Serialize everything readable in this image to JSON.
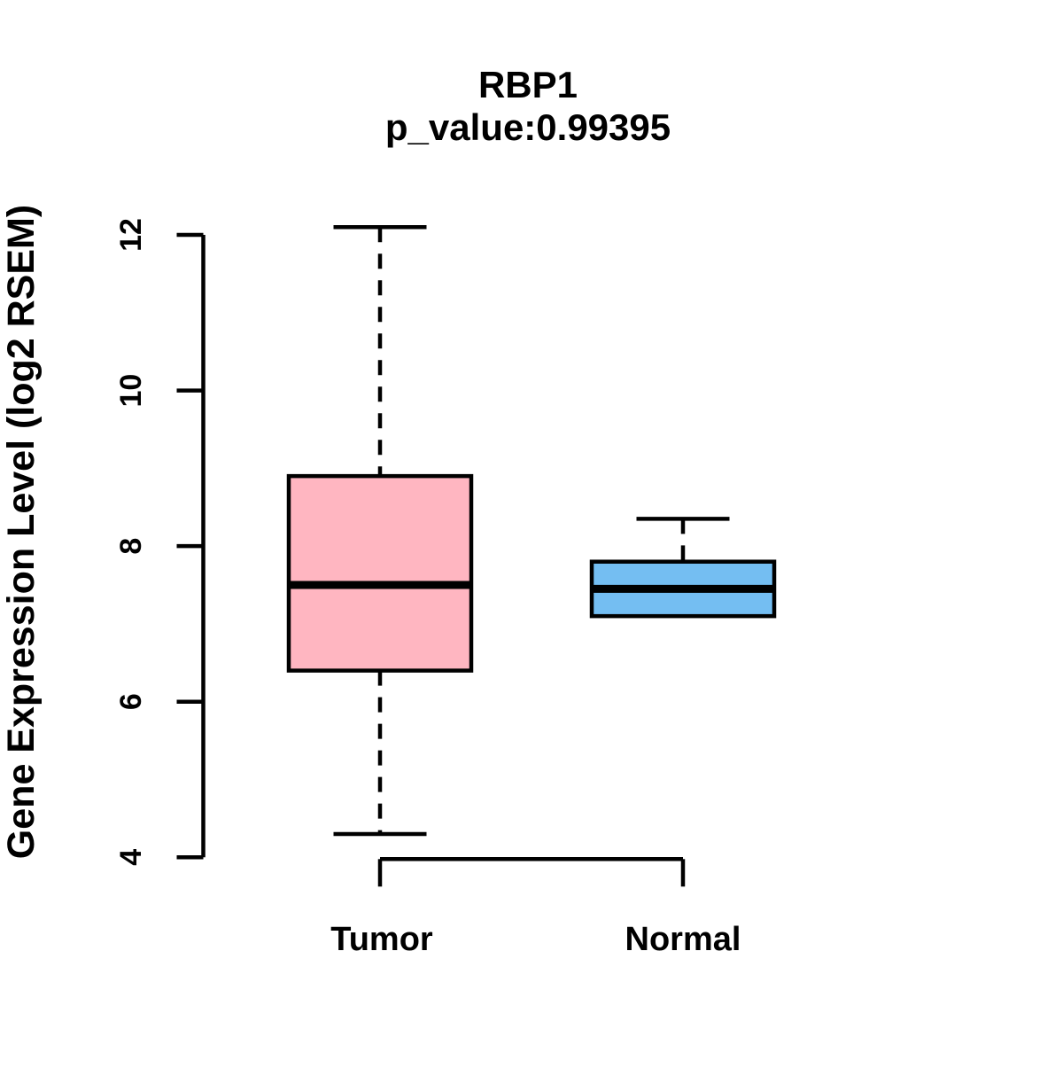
{
  "header": {
    "title": "RBP1",
    "subtitle": "p_value:0.99395"
  },
  "chart_data": {
    "type": "boxplot",
    "title": "RBP1",
    "subtitle": "p_value:0.99395",
    "ylabel": "Gene Expression Level (log2 RSEM)",
    "xlabel": "",
    "categories": [
      "Tumor",
      "Normal"
    ],
    "yticks": [
      4,
      6,
      8,
      10,
      12
    ],
    "ylim": [
      3.7,
      12.3
    ],
    "grid": false,
    "legend": "none",
    "series": [
      {
        "name": "Tumor",
        "min": 4.3,
        "q1": 6.4,
        "median": 7.5,
        "q3": 8.9,
        "max": 12.1,
        "fill_color": "#ffb6c1"
      },
      {
        "name": "Normal",
        "min": 7.1,
        "q1": 7.1,
        "median": 7.45,
        "q3": 7.8,
        "max": 8.35,
        "fill_color": "#74bef2"
      }
    ],
    "colors": {
      "tumor_fill": "#ffb6c1",
      "normal_fill": "#74bef2",
      "stroke": "#000000",
      "background": "#ffffff"
    }
  }
}
